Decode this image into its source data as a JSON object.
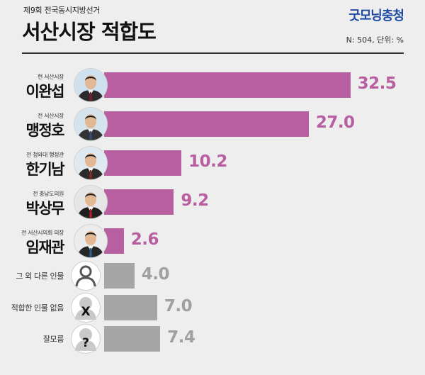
{
  "header": {
    "subtitle": "제9회 전국동시지방선거",
    "title": "서산시장 적합도",
    "brand": "굿모닝충청",
    "note": "N: 504, 단위: %"
  },
  "colors": {
    "candidate_bar": "#b85fa2",
    "other_bar": "#a6a6a6",
    "candidate_value": "#b85fa2",
    "other_value": "#a0a0a0"
  },
  "chart_data": {
    "type": "bar",
    "orientation": "horizontal",
    "categories": [
      "이완섭",
      "맹정호",
      "한기남",
      "박상무",
      "임재관",
      "그 외 다른 인물",
      "적합한 인물 없음",
      "잘모름"
    ],
    "roles": [
      "현 서산시장",
      "전 서산시장",
      "전 청와대 행정관",
      "전 충남도의원",
      "전 서산시의회 의장",
      "",
      "",
      ""
    ],
    "values": [
      32.5,
      27.0,
      10.2,
      9.2,
      2.6,
      4.0,
      7.0,
      7.4
    ],
    "value_labels": [
      "32.5",
      "27.0",
      "10.2",
      "9.2",
      "2.6",
      "4.0",
      "7.0",
      "7.4"
    ],
    "title": "서산시장 적합도",
    "xlim": [
      0,
      33
    ]
  }
}
